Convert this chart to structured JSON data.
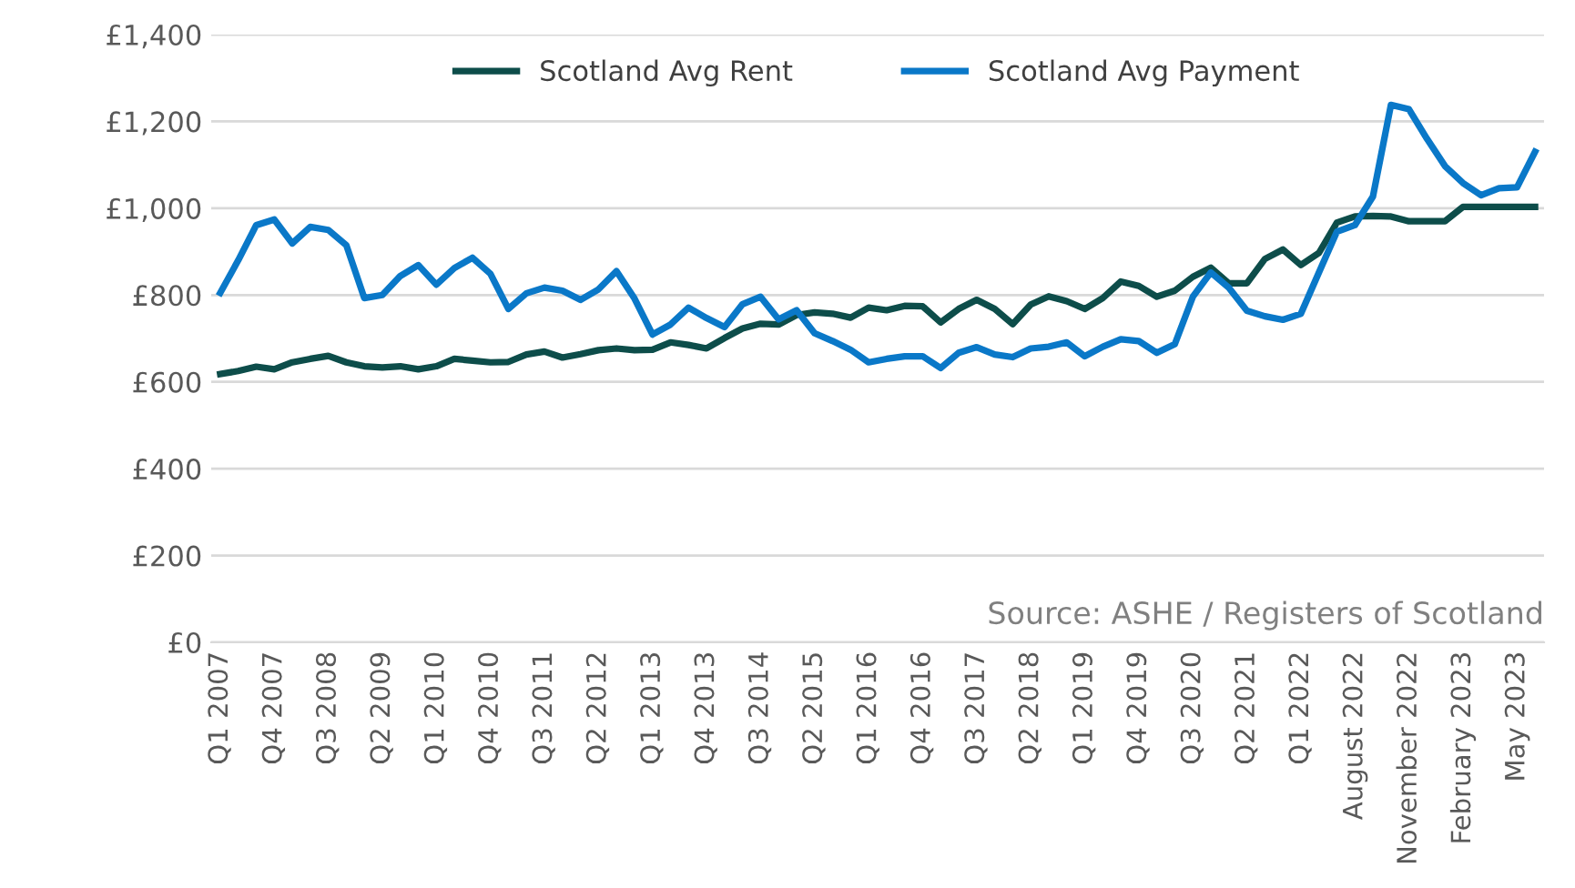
{
  "chart_data": {
    "type": "line",
    "categories": [
      "Q1 2007",
      null,
      null,
      "Q4 2007",
      null,
      null,
      "Q3 2008",
      null,
      null,
      "Q2 2009",
      null,
      null,
      "Q1 2010",
      null,
      null,
      "Q4 2010",
      null,
      null,
      "Q3 2011",
      null,
      null,
      "Q2 2012",
      null,
      null,
      "Q1 2013",
      null,
      null,
      "Q4 2013",
      null,
      null,
      "Q3 2014",
      null,
      null,
      "Q2 2015",
      null,
      null,
      "Q1 2016",
      null,
      null,
      "Q4 2016",
      null,
      null,
      "Q3 2017",
      null,
      null,
      "Q2 2018",
      null,
      null,
      "Q1 2019",
      null,
      null,
      "Q4 2019",
      null,
      null,
      "Q3 2020",
      null,
      null,
      "Q2 2021",
      null,
      null,
      "Q1 2022",
      null,
      null,
      "August 2022",
      null,
      null,
      "November 2022",
      null,
      null,
      "February 2023",
      null,
      null,
      "May 2023",
      null
    ],
    "series": [
      {
        "name": "Scotland Avg Rent",
        "color": "#0d4d4a",
        "values": [
          618,
          625,
          635,
          629,
          645,
          653,
          660,
          645,
          636,
          633,
          636,
          629,
          636,
          653,
          649,
          645,
          646,
          663,
          670,
          656,
          664,
          673,
          677,
          673,
          674,
          691,
          685,
          677,
          701,
          723,
          734,
          732,
          754,
          760,
          757,
          748,
          771,
          765,
          775,
          774,
          737,
          768,
          789,
          768,
          733,
          778,
          797,
          786,
          768,
          793,
          831,
          821,
          796,
          810,
          842,
          863,
          827,
          827,
          883,
          905,
          869,
          897,
          967,
          981,
          982,
          981,
          970,
          970,
          970,
          1003,
          1003,
          1003,
          1003,
          1003
        ]
      },
      {
        "name": "Scotland Avg Payment",
        "color": "#0a78c8",
        "values": [
          805,
          880,
          961,
          974,
          919,
          957,
          950,
          915,
          793,
          800,
          844,
          869,
          824,
          862,
          886,
          849,
          768,
          804,
          817,
          810,
          789,
          813,
          855,
          792,
          709,
          732,
          771,
          747,
          726,
          779,
          796,
          744,
          765,
          712,
          694,
          674,
          645,
          653,
          659,
          659,
          632,
          667,
          680,
          663,
          657,
          677,
          681,
          691,
          659,
          681,
          698,
          694,
          667,
          687,
          796,
          852,
          817,
          764,
          751,
          743,
          757,
          852,
          946,
          961,
          1027,
          1238,
          1228,
          1160,
          1097,
          1058,
          1030,
          1046,
          1048,
          1130
        ]
      }
    ],
    "ylim": [
      0,
      1400
    ],
    "yticks": [
      {
        "value": 0,
        "label": "£0"
      },
      {
        "value": 200,
        "label": "£200"
      },
      {
        "value": 400,
        "label": "£400"
      },
      {
        "value": 600,
        "label": "£600"
      },
      {
        "value": 800,
        "label": "£800"
      },
      {
        "value": 1000,
        "label": "£1,000"
      },
      {
        "value": 1200,
        "label": "£1,200"
      },
      {
        "value": 1400,
        "label": "£1,400"
      }
    ],
    "grid": "y",
    "legend": "top",
    "annotations": [
      "Source: ASHE / Registers of Scotland"
    ]
  }
}
